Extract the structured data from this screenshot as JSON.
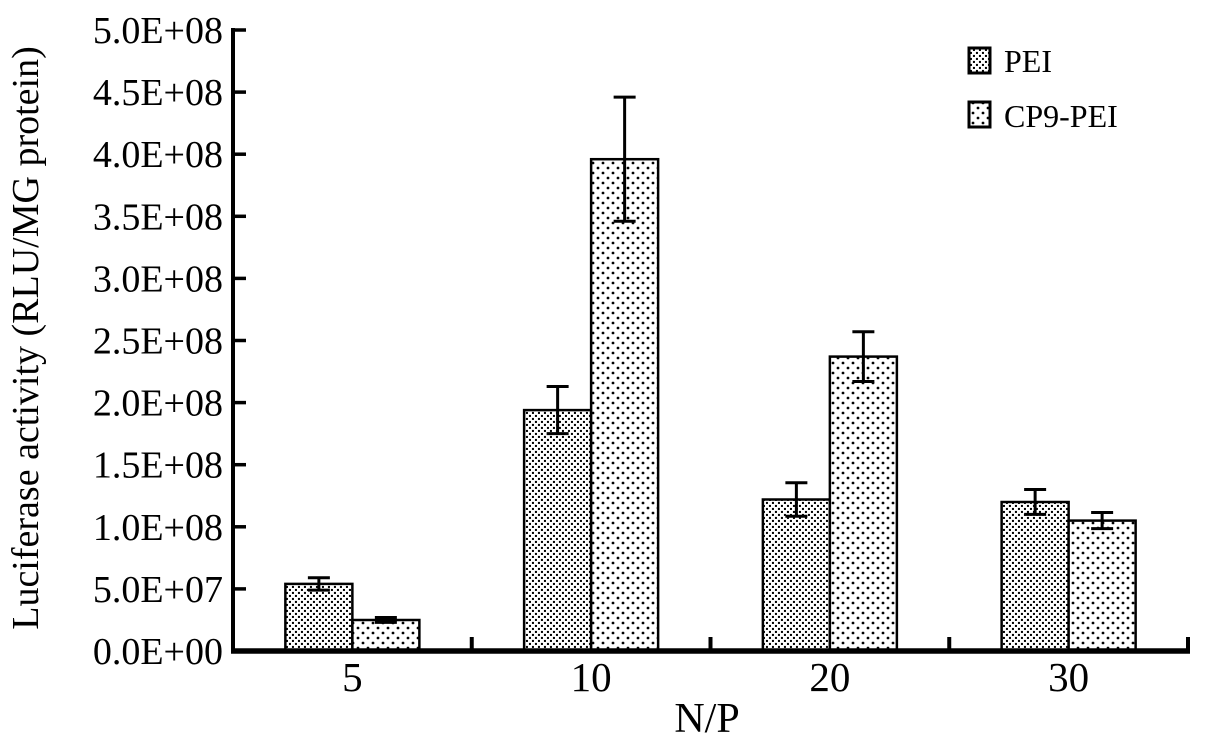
{
  "chart_data": {
    "type": "bar",
    "title": "",
    "xlabel": "N/P",
    "ylabel": "Luciferase activity (RLU/MG protein)",
    "categories": [
      "5",
      "10",
      "20",
      "30"
    ],
    "series": [
      {
        "name": "PEI",
        "pattern": "dense-dots",
        "values": [
          54000000,
          194000000,
          122000000,
          120000000
        ],
        "errors": [
          5000000,
          19000000,
          13500000,
          10000000
        ]
      },
      {
        "name": "CP9-PEI",
        "pattern": "sparse-dots",
        "values": [
          25000000,
          396000000,
          237000000,
          105000000
        ],
        "errors": [
          2000000,
          50000000,
          20000000,
          6500000
        ]
      }
    ],
    "y_axis": {
      "min": 0,
      "max": 500000000,
      "tick_step": 50000000,
      "tick_labels": [
        "0.0E+00",
        "5.0E+07",
        "1.0E+08",
        "1.5E+08",
        "2.0E+08",
        "2.5E+08",
        "3.0E+08",
        "3.5E+08",
        "4.0E+08",
        "4.5E+08",
        "5.0E+08"
      ]
    },
    "legend": {
      "position": "top-right",
      "entries": [
        "PEI",
        "CP9-PEI"
      ]
    },
    "error_bars": "plus-minus with caps",
    "grid": false,
    "colors": {
      "foreground": "#000000",
      "background": "#ffffff"
    }
  }
}
